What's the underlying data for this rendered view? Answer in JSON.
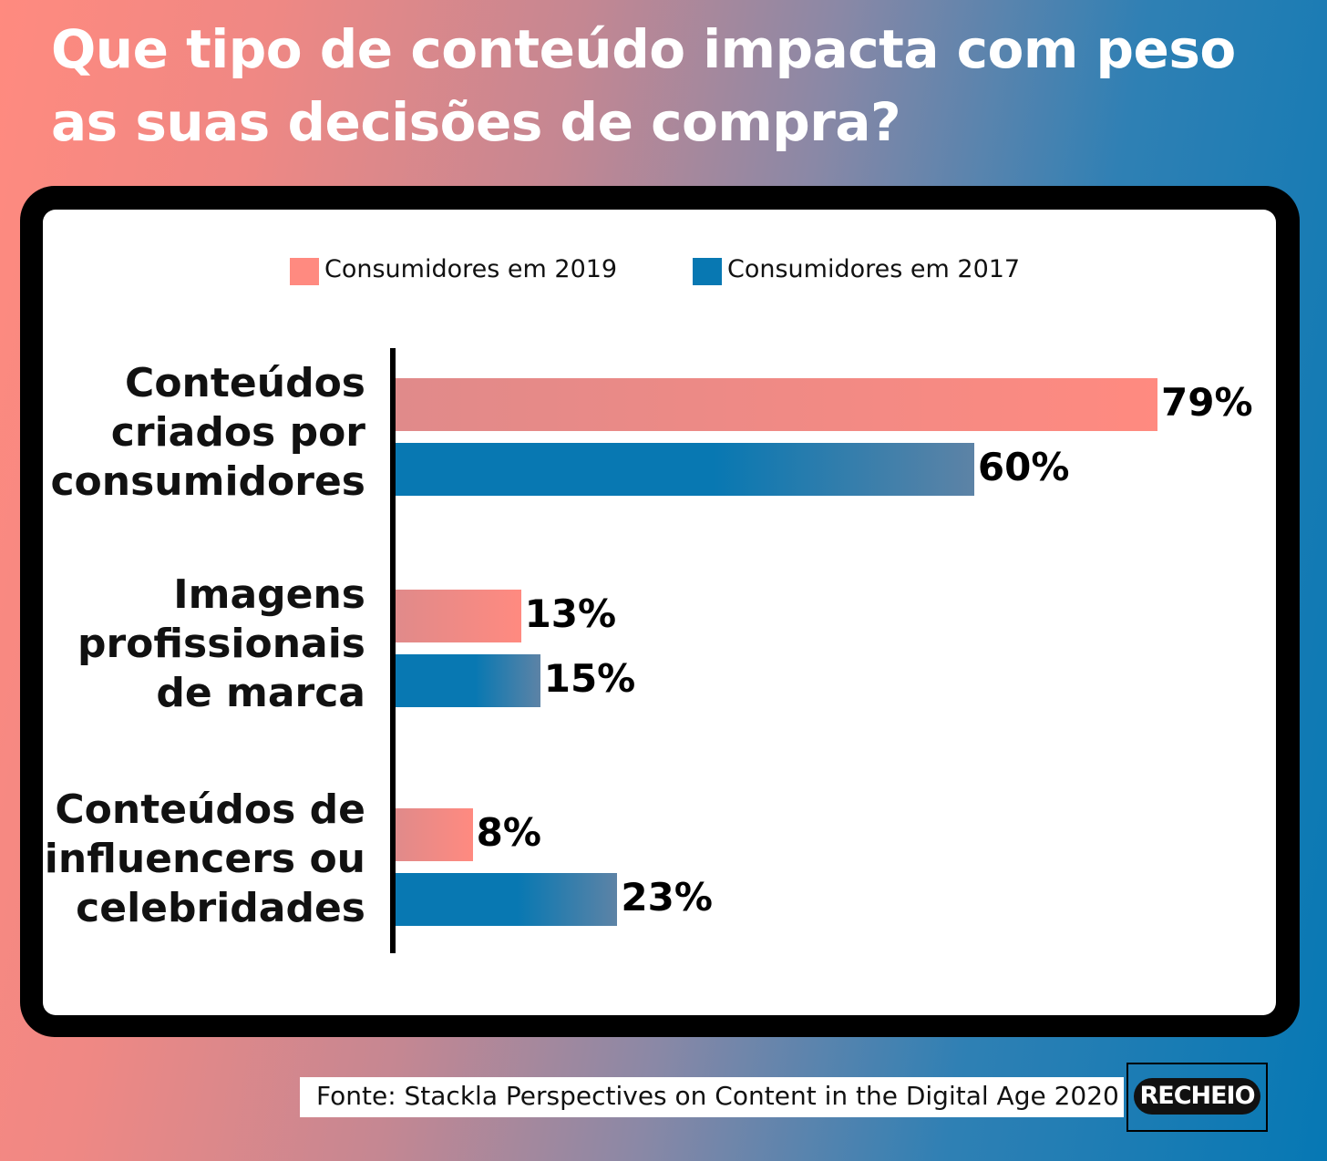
{
  "title": "Que tipo de conteúdo impacta com peso as suas decisões de compra?",
  "legend": [
    {
      "label": "Consumidores em 2019",
      "color": "#ff8a80"
    },
    {
      "label": "Consumidores em 2017",
      "color": "#0878b2"
    }
  ],
  "chart_data": {
    "type": "bar",
    "orientation": "horizontal",
    "categories": [
      "Conteúdos criados por consumidores",
      "Imagens profissionais de marca",
      "Conteúdos de influencers ou celebridades"
    ],
    "category_lines": [
      [
        "Conteúdos",
        "criados por",
        "consumidores"
      ],
      [
        "Imagens",
        "profissionais",
        "de marca"
      ],
      [
        "Conteúdos de",
        "influencers ou",
        "celebridades"
      ]
    ],
    "series": [
      {
        "name": "Consumidores em 2019",
        "values": [
          79,
          13,
          8
        ],
        "labels": [
          "79%",
          "13%",
          "8%"
        ],
        "color": "#ff8a80"
      },
      {
        "name": "Consumidores em 2017",
        "values": [
          60,
          15,
          23
        ],
        "labels": [
          "60%",
          "15%",
          "23%"
        ],
        "color": "#0878b2"
      }
    ],
    "unit": "%",
    "xlim": [
      0,
      79
    ],
    "legend_position": "top",
    "grid": false
  },
  "source": "Fonte: Stackla Perspectives on Content in the Digital Age 2020",
  "logo_text": "RECHEIO"
}
